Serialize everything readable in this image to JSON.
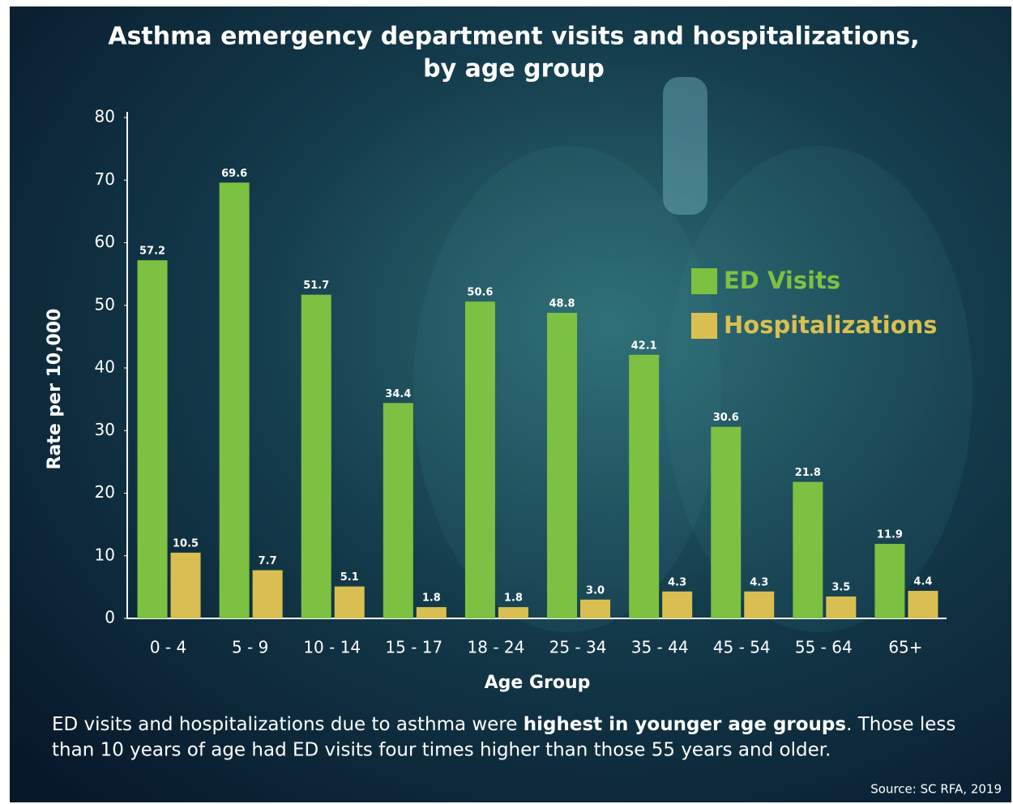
{
  "chart_data": {
    "type": "bar",
    "title": [
      "Asthma emergency department visits and hospitalizations,",
      "by age group"
    ],
    "x_label": "Age Group",
    "y_label": "Rate per 10,000",
    "categories": [
      "0 - 4",
      "5 - 9",
      "10 - 14",
      "15 - 17",
      "18 - 24",
      "25 - 34",
      "35 - 44",
      "45 - 54",
      "55 - 64",
      "65+"
    ],
    "series": [
      {
        "name": "ED Visits",
        "color": "#7dc142",
        "values": [
          57.2,
          69.6,
          51.7,
          34.4,
          50.6,
          48.8,
          42.1,
          30.6,
          21.8,
          11.9
        ]
      },
      {
        "name": "Hospitalizations",
        "color": "#d9bf52",
        "values": [
          10.5,
          7.7,
          5.1,
          1.8,
          1.8,
          3.0,
          4.3,
          4.3,
          3.5,
          4.4
        ],
        "value_labels": [
          "10.5",
          "7.7",
          "5.1",
          "1.8",
          "1.8",
          "3.0",
          "4.3",
          "4.3",
          "3.5",
          "4.4"
        ]
      }
    ],
    "ylim": [
      0,
      80
    ],
    "yticks": [
      0,
      10,
      20,
      30,
      40,
      50,
      60,
      70,
      80
    ],
    "grid": false,
    "legend": "right",
    "caption": [
      "ED visits and hospitalizations due to asthma were ",
      "highest in younger age groups",
      ". Those less than 10 years of age had ED visits four times higher than those 55 years and older."
    ],
    "source": "Source: SC RFA, 2019"
  }
}
